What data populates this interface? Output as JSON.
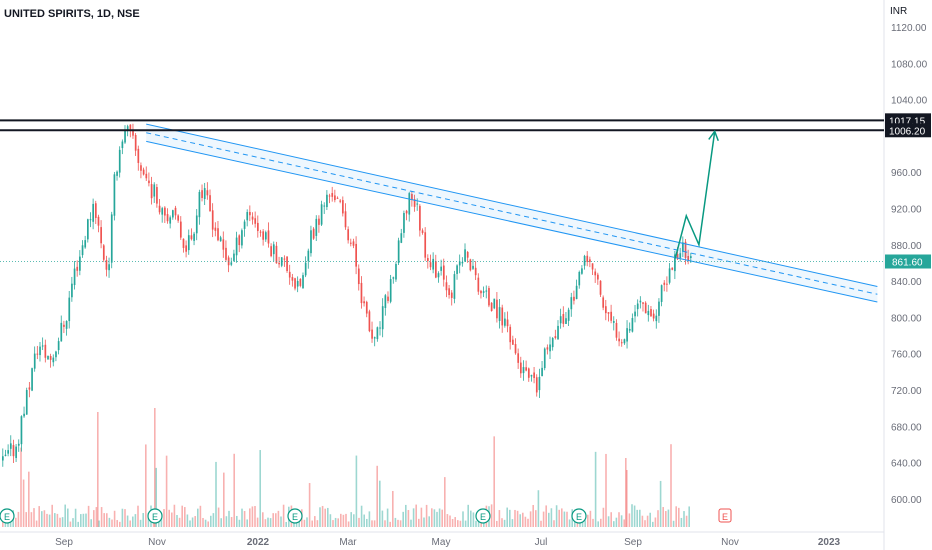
{
  "header": {
    "title": "UNITED SPIRITS, 1D, NSE"
  },
  "chart_data": {
    "type": "candlestick",
    "title": "UNITED SPIRITS, 1D, NSE",
    "currency": "INR",
    "x_ticks": [
      "Sep",
      "Nov",
      "2022",
      "Mar",
      "May",
      "Jul",
      "Sep",
      "Nov",
      "2023"
    ],
    "y_ticks": [
      "1120.00",
      "1080.00",
      "1040.00",
      "960.00",
      "920.00",
      "880.00",
      "840.00",
      "800.00",
      "760.00",
      "720.00",
      "680.00",
      "640.00",
      "600.00"
    ],
    "ylim": [
      575,
      1135
    ],
    "last_price": "861.60",
    "horizontal_levels": [
      {
        "label": "1017.15",
        "value": 1017.15
      },
      {
        "label": "1006.20",
        "value": 1006.2
      }
    ],
    "colors": {
      "up": "#26a69a",
      "down": "#ef5350",
      "level": "#131722",
      "channel": "#2196f3",
      "projection": "#089981",
      "last_price": "#26a69a"
    },
    "channel": {
      "upper_start": {
        "date": "2021-10-25",
        "value": 1013
      },
      "upper_end": {
        "date": "2023-01-31",
        "value": 834
      },
      "lower_start": {
        "date": "2021-10-25",
        "value": 994
      },
      "lower_end": {
        "date": "2023-01-31",
        "value": 817
      }
    },
    "projection_path": [
      {
        "date": "2022-09-25",
        "value": 865
      },
      {
        "date": "2022-10-02",
        "value": 912
      },
      {
        "date": "2022-10-10",
        "value": 880
      },
      {
        "date": "2022-10-20",
        "value": 1005
      }
    ],
    "events_icons": [
      "E",
      "E",
      "E",
      "E",
      "E",
      "E",
      "E",
      "E"
    ],
    "price_path": [
      640,
      650,
      660,
      700,
      735,
      770,
      760,
      755,
      780,
      800,
      845,
      870,
      900,
      930,
      880,
      850,
      960,
      1000,
      1005,
      980,
      960,
      945,
      930,
      920,
      910,
      900,
      880,
      890,
      940,
      930,
      905,
      880,
      860,
      870,
      900,
      920,
      905,
      890,
      880,
      870,
      860,
      850,
      830,
      850,
      890,
      910,
      930,
      940,
      920,
      900,
      870,
      830,
      790,
      770,
      800,
      830,
      860,
      900,
      940,
      920,
      880,
      860,
      850,
      840,
      830,
      860,
      870,
      850,
      830,
      820,
      810,
      800,
      790,
      760,
      740,
      730,
      720,
      750,
      780,
      790,
      800,
      820,
      840,
      860,
      855,
      830,
      800,
      790,
      780,
      790,
      810,
      820,
      810,
      800,
      830,
      850,
      870,
      880,
      860
    ]
  }
}
